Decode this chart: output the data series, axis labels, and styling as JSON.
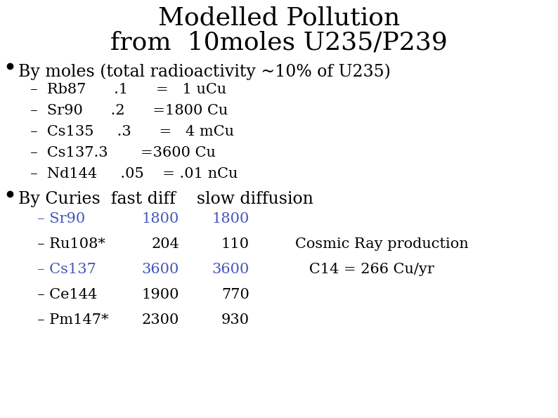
{
  "title_line1": "Modelled Pollution",
  "title_line2": "from  10moles U235/P239",
  "background_color": "#ffffff",
  "title_color": "#000000",
  "title_fontsize": 26,
  "bullet1": "By moles (total radioactivity ~10% of U235)",
  "bullet1_color": "#000000",
  "bullet1_fontsize": 17,
  "moles_lines": [
    {
      "text": "  –  Rb87      .1      =   1 uCu",
      "color": "#000000"
    },
    {
      "text": "  –  Sr90      .2      =1800 Cu",
      "color": "#000000"
    },
    {
      "text": "  –  Cs135     .3      =   4 mCu",
      "color": "#000000"
    },
    {
      "text": "  –  Cs137.3       =3600 Cu",
      "color": "#000000"
    },
    {
      "text": "  –  Nd144     .05    = .01 nCu",
      "color": "#000000"
    }
  ],
  "moles_fontsize": 15,
  "bullet2": "By Curies  fast diff    slow diffusion",
  "bullet2_color": "#000000",
  "bullet2_fontsize": 17,
  "curies_lines": [
    {
      "col1": "  – Sr90",
      "col1_color": "#4455bb",
      "col2": "1800",
      "col2_color": "#4455bb",
      "col3": "1800",
      "col3_color": "#4455bb",
      "col4": "",
      "col4_color": "#000000"
    },
    {
      "col1": "  – Ru108*",
      "col1_color": "#000000",
      "col2": "204",
      "col2_color": "#000000",
      "col3": "110",
      "col3_color": "#000000",
      "col4": "Cosmic Ray production",
      "col4_color": "#000000"
    },
    {
      "col1": "  – Cs137",
      "col1_color": "#4455bb",
      "col2": "3600",
      "col2_color": "#4455bb",
      "col3": "3600",
      "col3_color": "#4455bb",
      "col4": "   C14 = 266 Cu/yr",
      "col4_color": "#000000"
    },
    {
      "col1": "  – Ce144",
      "col1_color": "#000000",
      "col2": "1900",
      "col2_color": "#000000",
      "col3": "770",
      "col3_color": "#000000",
      "col4": "",
      "col4_color": "#000000"
    },
    {
      "col1": "  – Pm147*",
      "col1_color": "#000000",
      "col2": "2300",
      "col2_color": "#000000",
      "col3": "930",
      "col3_color": "#000000",
      "col4": "",
      "col4_color": "#000000"
    }
  ],
  "curies_fontsize": 15,
  "fig_width": 7.94,
  "fig_height": 5.95,
  "dpi": 100
}
